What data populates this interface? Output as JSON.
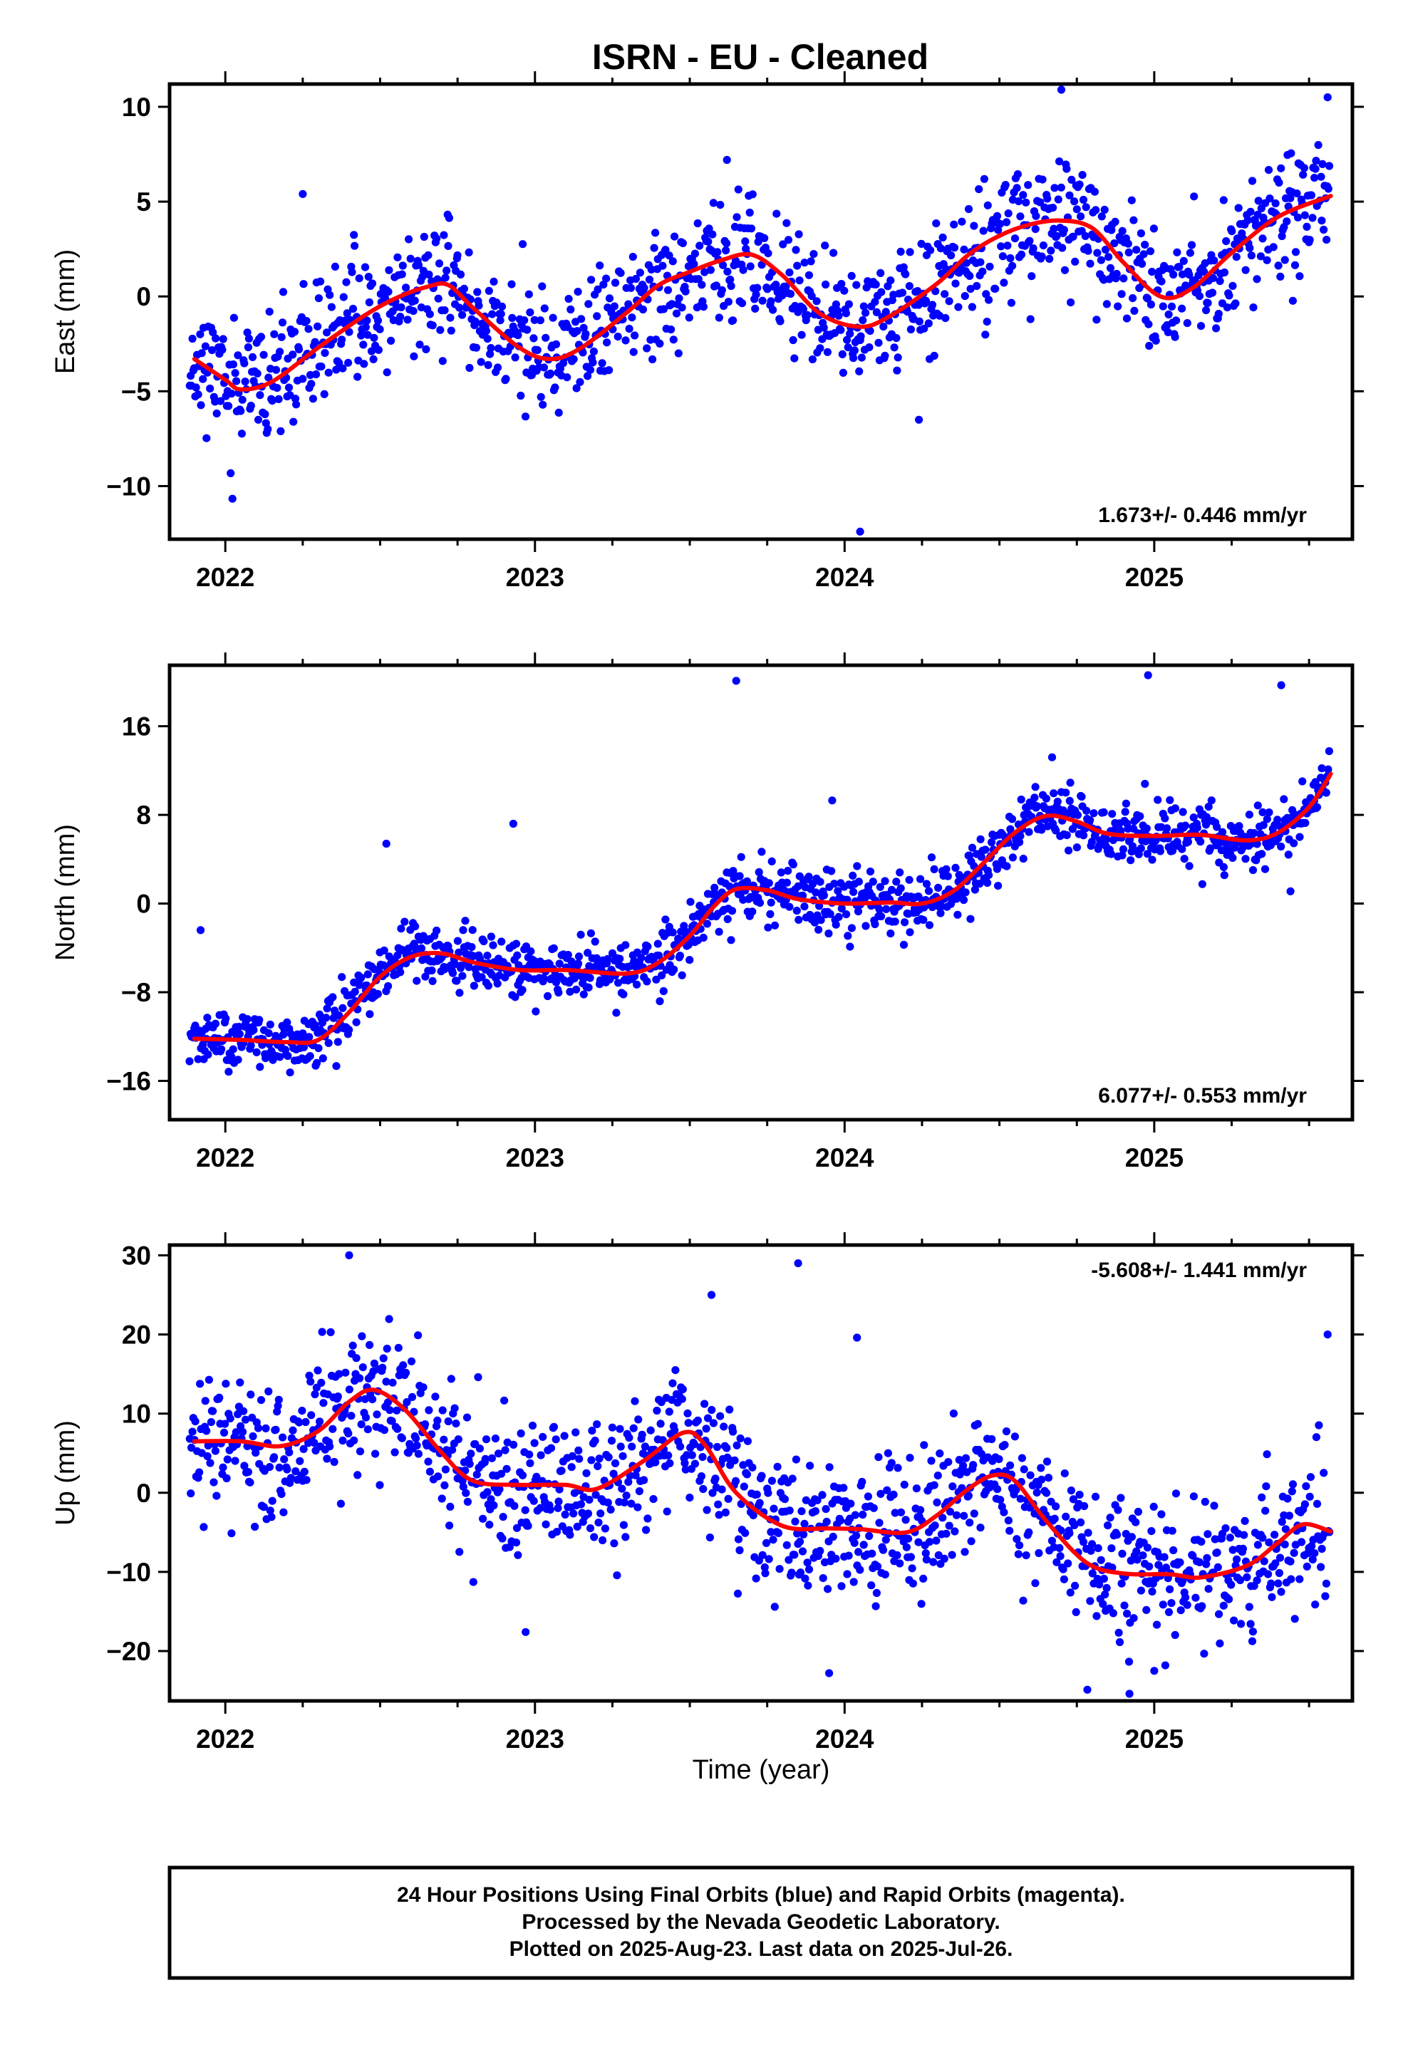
{
  "title": "ISRN  - EU - Cleaned",
  "colors": {
    "final_orbits": "#0000ff",
    "fit_curve": "#ff0000",
    "frame": "#000000"
  },
  "chart_data": [
    {
      "type": "scatter",
      "name": "east",
      "ylabel": "East (mm)",
      "xlabel": "",
      "xlim": [
        2021.82,
        2025.64
      ],
      "ylim": [
        -12.8,
        11.2
      ],
      "yticks": [
        10,
        5,
        0,
        -5,
        -10
      ],
      "ytick_labels": [
        "10",
        "5",
        "0",
        "−5",
        "−10"
      ],
      "xticks": [
        2022,
        2023,
        2024,
        2025
      ],
      "xtick_labels": [
        "2022",
        "2023",
        "2024",
        "2025"
      ],
      "rate_text": "1.673+/- 0.446 mm/yr",
      "rate_position": "bottom-right",
      "trend": {
        "rate": 1.673,
        "offset": -1.2
      },
      "fit_curve": [
        [
          2021.9,
          -3.3
        ],
        [
          2022.0,
          -4.4
        ],
        [
          2022.05,
          -4.9
        ],
        [
          2022.15,
          -4.5
        ],
        [
          2022.3,
          -2.7
        ],
        [
          2022.45,
          -1.0
        ],
        [
          2022.55,
          -0.1
        ],
        [
          2022.65,
          0.5
        ],
        [
          2022.72,
          0.6
        ],
        [
          2022.8,
          -0.6
        ],
        [
          2022.95,
          -2.7
        ],
        [
          2023.05,
          -3.3
        ],
        [
          2023.15,
          -2.7
        ],
        [
          2023.3,
          -0.8
        ],
        [
          2023.4,
          0.6
        ],
        [
          2023.5,
          1.3
        ],
        [
          2023.6,
          1.9
        ],
        [
          2023.7,
          2.2
        ],
        [
          2023.8,
          1.1
        ],
        [
          2023.92,
          -0.9
        ],
        [
          2024.05,
          -1.6
        ],
        [
          2024.15,
          -1.0
        ],
        [
          2024.3,
          0.7
        ],
        [
          2024.4,
          2.2
        ],
        [
          2024.5,
          3.2
        ],
        [
          2024.6,
          3.8
        ],
        [
          2024.7,
          4.0
        ],
        [
          2024.8,
          3.6
        ],
        [
          2024.9,
          1.8
        ],
        [
          2025.02,
          0.0
        ],
        [
          2025.12,
          0.4
        ],
        [
          2025.25,
          2.3
        ],
        [
          2025.4,
          4.2
        ],
        [
          2025.57,
          5.3
        ]
      ],
      "scatter": {
        "count": 1230,
        "sigma": 1.6,
        "seed": 11
      },
      "outliers": [
        [
          2022.25,
          5.4
        ],
        [
          2023.62,
          7.2
        ],
        [
          2024.05,
          -12.4
        ],
        [
          2024.24,
          -6.5
        ],
        [
          2024.7,
          10.9
        ],
        [
          2025.56,
          10.5
        ]
      ]
    },
    {
      "type": "scatter",
      "name": "north",
      "ylabel": "North (mm)",
      "xlabel": "",
      "xlim": [
        2021.82,
        2025.64
      ],
      "ylim": [
        -19.5,
        21.5
      ],
      "yticks": [
        16,
        8,
        0,
        -8,
        -16
      ],
      "ytick_labels": [
        "16",
        "8",
        "0",
        "−8",
        "−16"
      ],
      "xticks": [
        2022,
        2023,
        2024,
        2025
      ],
      "xtick_labels": [
        "2022",
        "2023",
        "2024",
        "2025"
      ],
      "rate_text": "6.077+/- 0.553 mm/yr",
      "rate_position": "bottom-right",
      "trend": {
        "rate": 6.077,
        "offset": 0.0
      },
      "fit_curve": [
        [
          2021.9,
          -12.2
        ],
        [
          2022.05,
          -12.3
        ],
        [
          2022.2,
          -12.5
        ],
        [
          2022.3,
          -12.3
        ],
        [
          2022.4,
          -9.8
        ],
        [
          2022.5,
          -6.6
        ],
        [
          2022.6,
          -4.8
        ],
        [
          2022.7,
          -4.5
        ],
        [
          2022.8,
          -5.3
        ],
        [
          2022.95,
          -6.0
        ],
        [
          2023.1,
          -6.0
        ],
        [
          2023.3,
          -6.3
        ],
        [
          2023.4,
          -5.3
        ],
        [
          2023.5,
          -2.9
        ],
        [
          2023.58,
          -0.2
        ],
        [
          2023.65,
          1.3
        ],
        [
          2023.75,
          1.2
        ],
        [
          2023.85,
          0.4
        ],
        [
          2024.0,
          0.0
        ],
        [
          2024.15,
          0.1
        ],
        [
          2024.25,
          0.0
        ],
        [
          2024.35,
          1.1
        ],
        [
          2024.45,
          3.7
        ],
        [
          2024.55,
          6.4
        ],
        [
          2024.65,
          7.9
        ],
        [
          2024.75,
          7.4
        ],
        [
          2024.85,
          6.3
        ],
        [
          2025.0,
          6.1
        ],
        [
          2025.15,
          6.2
        ],
        [
          2025.3,
          5.7
        ],
        [
          2025.4,
          6.4
        ],
        [
          2025.5,
          8.7
        ],
        [
          2025.57,
          11.7
        ]
      ],
      "scatter": {
        "count": 1230,
        "sigma": 1.3,
        "seed": 23
      },
      "outliers": [
        [
          2021.92,
          -2.4
        ],
        [
          2022.52,
          5.4
        ],
        [
          2022.93,
          7.2
        ],
        [
          2023.65,
          20.1
        ],
        [
          2023.96,
          9.3
        ],
        [
          2024.67,
          13.2
        ],
        [
          2024.97,
          10.8
        ],
        [
          2024.98,
          20.6
        ],
        [
          2025.41,
          19.7
        ],
        [
          2025.44,
          1.1
        ]
      ]
    },
    {
      "type": "scatter",
      "name": "up",
      "ylabel": "Up (mm)",
      "xlabel": "Time (year)",
      "xlim": [
        2021.82,
        2025.64
      ],
      "ylim": [
        -26.3,
        31.3
      ],
      "yticks": [
        30,
        20,
        10,
        0,
        -10,
        -20
      ],
      "ytick_labels": [
        "30",
        "20",
        "10",
        "0",
        "−10",
        "−20"
      ],
      "xticks": [
        2022,
        2023,
        2024,
        2025
      ],
      "xtick_labels": [
        "2022",
        "2023",
        "2024",
        "2025"
      ],
      "rate_text": "-5.608+/- 1.441 mm/yr",
      "rate_position": "top-right",
      "trend": {
        "rate": -5.608,
        "offset": 0.0
      },
      "fit_curve": [
        [
          2021.9,
          6.5
        ],
        [
          2022.05,
          6.5
        ],
        [
          2022.18,
          5.9
        ],
        [
          2022.3,
          7.8
        ],
        [
          2022.4,
          11.5
        ],
        [
          2022.48,
          13.0
        ],
        [
          2022.58,
          10.5
        ],
        [
          2022.7,
          5.0
        ],
        [
          2022.8,
          1.5
        ],
        [
          2022.95,
          1.0
        ],
        [
          2023.1,
          1.0
        ],
        [
          2023.2,
          0.5
        ],
        [
          2023.35,
          4.0
        ],
        [
          2023.48,
          7.6
        ],
        [
          2023.55,
          6.0
        ],
        [
          2023.65,
          0.0
        ],
        [
          2023.8,
          -4.2
        ],
        [
          2023.95,
          -4.5
        ],
        [
          2024.05,
          -4.6
        ],
        [
          2024.2,
          -5.0
        ],
        [
          2024.3,
          -2.8
        ],
        [
          2024.4,
          0.5
        ],
        [
          2024.48,
          2.2
        ],
        [
          2024.55,
          1.5
        ],
        [
          2024.65,
          -3.5
        ],
        [
          2024.78,
          -8.8
        ],
        [
          2024.9,
          -10.2
        ],
        [
          2025.05,
          -10.3
        ],
        [
          2025.15,
          -10.7
        ],
        [
          2025.3,
          -9.2
        ],
        [
          2025.4,
          -6.3
        ],
        [
          2025.48,
          -4.0
        ],
        [
          2025.57,
          -4.9
        ]
      ],
      "scatter": {
        "count": 1230,
        "sigma": 4.3,
        "seed": 37
      },
      "outliers": [
        [
          2022.4,
          30.0
        ],
        [
          2023.85,
          29.0
        ],
        [
          2023.57,
          25.0
        ],
        [
          2024.04,
          19.6
        ],
        [
          2023.95,
          -22.8
        ],
        [
          2024.92,
          -25.4
        ],
        [
          2025.0,
          -22.5
        ],
        [
          2025.56,
          20.0
        ],
        [
          2022.97,
          -17.6
        ]
      ]
    }
  ],
  "caption": {
    "line1": "24 Hour Positions Using Final Orbits (blue) and Rapid Orbits (magenta).",
    "line2": "Processed by the Nevada Geodetic Laboratory.",
    "line3": "Plotted on 2025-Aug-23. Last data on 2025-Jul-26."
  }
}
